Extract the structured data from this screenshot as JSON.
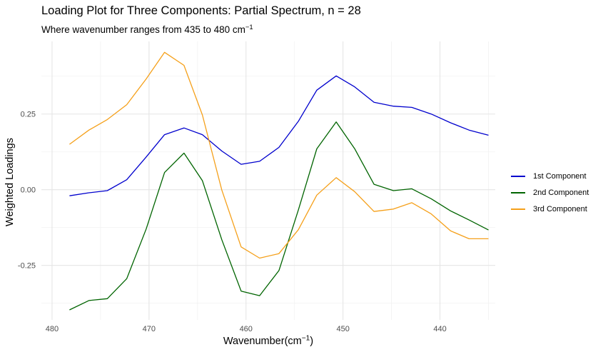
{
  "chart_data": {
    "type": "line",
    "title": "Loading Plot for Three Components: Partial Spectrum, n = 28",
    "subtitle_text": "Where wavenumber ranges from 435 to 480 cm",
    "subtitle_sup": "−1",
    "xlabel_text": "Wavenumber(cm",
    "xlabel_sup": "−1",
    "xlabel_close": ")",
    "ylabel": "Weighted Loadings",
    "x_reversed": true,
    "xlim": [
      481.1,
      434.3
    ],
    "ylim": [
      -0.43,
      0.49
    ],
    "x_ticks": [
      480,
      470,
      460,
      450,
      440
    ],
    "x_tick_labels": [
      "480",
      "470",
      "460",
      "450",
      "440"
    ],
    "y_ticks": [
      -0.25,
      0,
      0.25
    ],
    "y_tick_labels": [
      "-0.25",
      "0.00",
      "0.25"
    ],
    "grid": true,
    "legend_position": "right",
    "x": [
      478.2,
      476.2,
      474.3,
      472.3,
      470.3,
      468.4,
      466.4,
      464.5,
      462.5,
      460.5,
      458.6,
      456.6,
      454.6,
      452.7,
      450.7,
      448.8,
      446.8,
      444.8,
      442.9,
      440.9,
      438.9,
      437.0,
      435.0
    ],
    "series": [
      {
        "name": "1st Component",
        "color": "#0000CD",
        "values": [
          -0.02,
          -0.01,
          -0.003,
          0.033,
          0.108,
          0.182,
          0.204,
          0.182,
          0.128,
          0.084,
          0.094,
          0.14,
          0.226,
          0.329,
          0.376,
          0.34,
          0.289,
          0.276,
          0.272,
          0.25,
          0.221,
          0.197,
          0.18
        ]
      },
      {
        "name": "2nd Component",
        "color": "#006400",
        "values": [
          -0.397,
          -0.366,
          -0.36,
          -0.294,
          -0.13,
          0.057,
          0.121,
          0.03,
          -0.165,
          -0.335,
          -0.35,
          -0.267,
          -0.067,
          0.135,
          0.224,
          0.136,
          0.018,
          -0.003,
          0.003,
          -0.03,
          -0.07,
          -0.1,
          -0.133
        ]
      },
      {
        "name": "3rd Component",
        "color": "#F5A01A",
        "values": [
          0.15,
          0.197,
          0.232,
          0.281,
          0.366,
          0.454,
          0.411,
          0.247,
          -0.001,
          -0.189,
          -0.226,
          -0.211,
          -0.132,
          -0.018,
          0.04,
          -0.006,
          -0.072,
          -0.064,
          -0.043,
          -0.08,
          -0.136,
          -0.162,
          -0.162
        ]
      }
    ]
  }
}
